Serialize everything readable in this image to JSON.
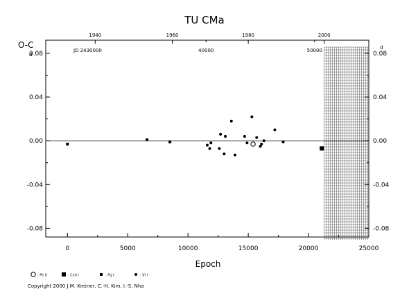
{
  "chart_data": {
    "type": "scatter",
    "title": "TU  CMa",
    "xlabel": "Epoch",
    "ylabel": "O-C",
    "ylabel_unit": "d",
    "right_unit": "d",
    "xlim": [
      -1800,
      25000
    ],
    "ylim": [
      -0.088,
      0.092
    ],
    "x_ticks": [
      0,
      5000,
      10000,
      15000,
      20000,
      25000
    ],
    "x_tick_labels": [
      "0",
      "5000",
      "10000",
      "15000",
      "20000",
      "25000"
    ],
    "y_ticks": [
      0.08,
      0.04,
      0.0,
      -0.04,
      -0.08
    ],
    "y_tick_labels": [
      "0.08",
      "0.04",
      "0.00",
      "-0.04",
      "-0.08"
    ],
    "top_year_ticks": [
      {
        "label": "1940",
        "epoch": 2300
      },
      {
        "label": "1960",
        "epoch": 8700
      },
      {
        "label": "1980",
        "epoch": 15000
      },
      {
        "label": "2000",
        "epoch": 21300
      }
    ],
    "jd_label": "JD 2430000",
    "jd_ticks": [
      {
        "label": "40000",
        "epoch": 11500
      },
      {
        "label": "50000",
        "epoch": 20500
      }
    ],
    "future_region_start": 21300,
    "series": [
      {
        "name": ": Pe II",
        "marker": "open-circle",
        "points": [
          [
            15400,
            -0.003
          ]
        ]
      },
      {
        "name": ": Ccd I",
        "marker": "filled-square",
        "points": [
          [
            21100,
            -0.007
          ]
        ]
      },
      {
        "name": ": Pg I",
        "marker": "small-square",
        "points": [
          [
            0,
            -0.003
          ],
          [
            6600,
            0.001
          ],
          [
            8500,
            -0.001
          ]
        ]
      },
      {
        "name": ": Vi I",
        "marker": "filled-dot",
        "points": [
          [
            11600,
            -0.004
          ],
          [
            11800,
            -0.007
          ],
          [
            11900,
            -0.002
          ],
          [
            12600,
            -0.007
          ],
          [
            12700,
            0.006
          ],
          [
            13000,
            -0.012
          ],
          [
            13100,
            0.004
          ],
          [
            13600,
            0.018
          ],
          [
            13900,
            -0.013
          ],
          [
            14700,
            0.004
          ],
          [
            14900,
            -0.002
          ],
          [
            15300,
            0.022
          ],
          [
            15700,
            0.003
          ],
          [
            16000,
            -0.005
          ],
          [
            16100,
            -0.003
          ],
          [
            16300,
            0.0
          ],
          [
            17200,
            0.01
          ],
          [
            17900,
            -0.001
          ]
        ]
      }
    ]
  },
  "copyright": "Copyright 2000 J.M. Kreiner, C.-H. Kim, I.-S. Nha"
}
